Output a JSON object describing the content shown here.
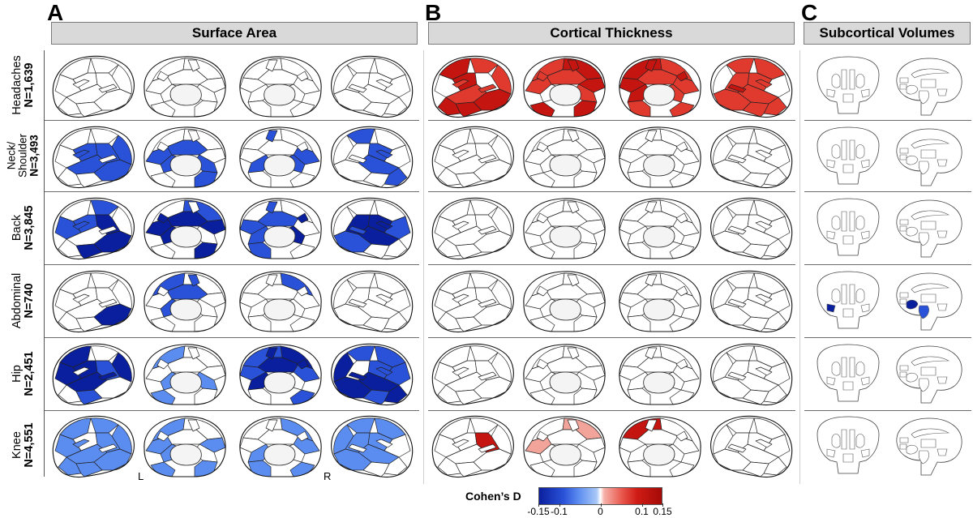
{
  "panels": [
    {
      "letter": "A",
      "title": "Surface Area"
    },
    {
      "letter": "B",
      "title": "Cortical Thickness"
    },
    {
      "letter": "C",
      "title": "Subcortical Volumes"
    }
  ],
  "rows": [
    {
      "name": "Headaches",
      "n": "N=1,639"
    },
    {
      "name": "Neck/\nShoulder",
      "n": "N=3,493"
    },
    {
      "name": "Back",
      "n": "N=3,845"
    },
    {
      "name": "Abdominal",
      "n": "N=740"
    },
    {
      "name": "Hip",
      "n": "N=2,451"
    },
    {
      "name": "Knee",
      "n": "N=4,551"
    }
  ],
  "hemisphere_labels": {
    "left": "L",
    "right": "R"
  },
  "colorbar": {
    "title": "Cohen’s D",
    "ticks": [
      "-0.15",
      "-0.1",
      "0",
      "0.1",
      "0.15"
    ],
    "tick_values": [
      -0.15,
      -0.1,
      0,
      0.1,
      0.15
    ],
    "range": [
      -0.15,
      0.15
    ],
    "colors": {
      "neg_strong": "#0a1f9e",
      "neg_mid": "#2a52d8",
      "neg_light": "#5b8cf0",
      "zero": "#ffffff",
      "pos_light": "#f2a49b",
      "pos_mid": "#e03a2f",
      "pos_strong": "#c41510"
    }
  },
  "maps": {
    "surface_area": [
      [
        "none",
        "none",
        "none",
        "none"
      ],
      [
        "mid",
        "mid",
        "mid",
        "mid"
      ],
      [
        "strong",
        "strong",
        "strong",
        "strong"
      ],
      [
        "strong_sparse",
        "sparse",
        "sparse",
        "none"
      ],
      [
        "strong",
        "mid_sparse",
        "strong",
        "strong"
      ],
      [
        "light",
        "light",
        "light",
        "light"
      ]
    ],
    "cortical_thickness": [
      [
        "pos_strong",
        "pos_strong",
        "pos_strong",
        "pos_strong"
      ],
      [
        "none",
        "none",
        "neg_sparse",
        "pos_sparse"
      ],
      [
        "none",
        "none",
        "none",
        "none"
      ],
      [
        "none",
        "none",
        "none",
        "none"
      ],
      [
        "none",
        "none",
        "none",
        "none"
      ],
      [
        "pos_sparse",
        "pos_light",
        "pos_sparse",
        "pos_sparse"
      ]
    ],
    "subcortical": [
      "none",
      "none",
      "none",
      "neg_strong",
      "none",
      "none"
    ]
  }
}
